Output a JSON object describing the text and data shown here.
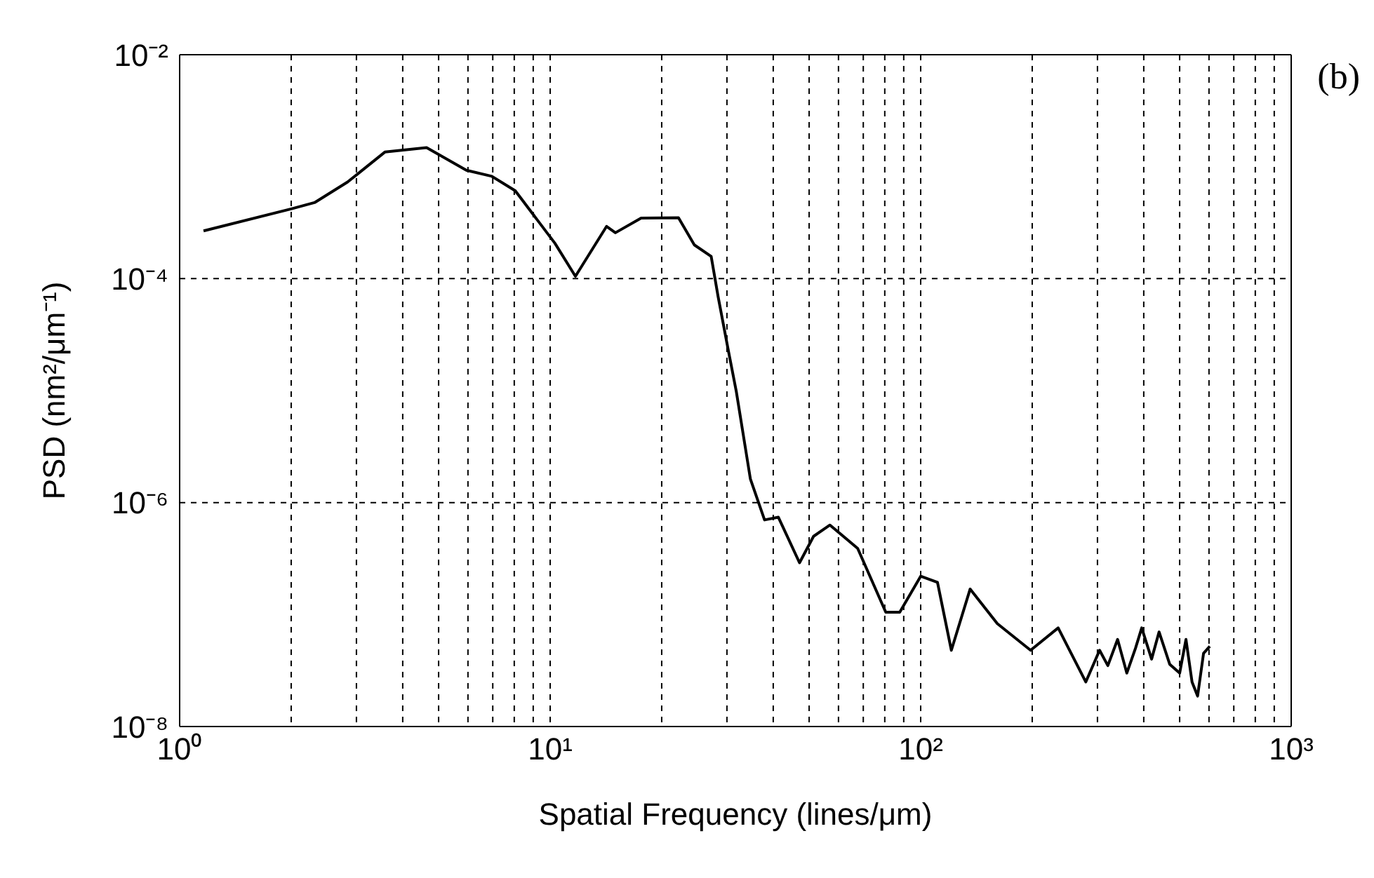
{
  "chart_data": {
    "type": "line",
    "xlabel": "Spatial Frequency (lines/μm)",
    "ylabel": "PSD (nm²/μm⁻¹)",
    "annotations": [
      "(b)"
    ],
    "log": "xy",
    "grid": true,
    "marker": "none",
    "line_style": "solid",
    "xlim": [
      1,
      1000
    ],
    "ylim": [
      1e-08,
      0.01
    ],
    "xticks": [
      {
        "value": 1,
        "label": "10⁰"
      },
      {
        "value": 2,
        "label": null
      },
      {
        "value": 3,
        "label": null
      },
      {
        "value": 4,
        "label": null
      },
      {
        "value": 5,
        "label": null
      },
      {
        "value": 6,
        "label": null
      },
      {
        "value": 7,
        "label": null
      },
      {
        "value": 8,
        "label": null
      },
      {
        "value": 9,
        "label": null
      },
      {
        "value": 10,
        "label": "10¹"
      },
      {
        "value": 20,
        "label": null
      },
      {
        "value": 30,
        "label": null
      },
      {
        "value": 40,
        "label": null
      },
      {
        "value": 50,
        "label": null
      },
      {
        "value": 60,
        "label": null
      },
      {
        "value": 70,
        "label": null
      },
      {
        "value": 80,
        "label": null
      },
      {
        "value": 90,
        "label": null
      },
      {
        "value": 100,
        "label": "10²"
      },
      {
        "value": 200,
        "label": null
      },
      {
        "value": 300,
        "label": null
      },
      {
        "value": 400,
        "label": null
      },
      {
        "value": 500,
        "label": null
      },
      {
        "value": 600,
        "label": null
      },
      {
        "value": 700,
        "label": null
      },
      {
        "value": 800,
        "label": null
      },
      {
        "value": 900,
        "label": null
      },
      {
        "value": 1000,
        "label": "10³"
      }
    ],
    "yticks": [
      {
        "value": 1e-08,
        "label": "10⁻⁸"
      },
      {
        "value": 1e-06,
        "label": "10⁻⁶"
      },
      {
        "value": 0.0001,
        "label": "10⁻⁴"
      },
      {
        "value": 0.01,
        "label": "10⁻²"
      }
    ],
    "series": [
      {
        "color": "#000000",
        "x": [
          1.16,
          2.0,
          2.32,
          2.84,
          3.58,
          4.64,
          5.94,
          6.96,
          8.05,
          10.3,
          11.7,
          14.2,
          15.0,
          17.6,
          22.2,
          24.5,
          27.2,
          28.4,
          30.1,
          31.8,
          34.7,
          37.9,
          41.3,
          47.1,
          51.4,
          56.9,
          67.6,
          80.5,
          87.8,
          100,
          111,
          121,
          136,
          161,
          198,
          235,
          279,
          304,
          320,
          340,
          360,
          380,
          395,
          420,
          440,
          470,
          500,
          520,
          540,
          559,
          580,
          603
        ],
        "values": [
          0.000267,
          0.00042,
          0.00048,
          0.00073,
          0.00135,
          0.00148,
          0.00093,
          0.00082,
          0.00061,
          0.000207,
          0.000105,
          0.000293,
          0.000257,
          0.000347,
          0.00035,
          0.0002,
          0.000158,
          6.9e-05,
          2.5e-05,
          9.8e-06,
          1.63e-06,
          7e-07,
          7.4e-07,
          2.9e-07,
          5e-07,
          6.3e-07,
          3.9e-07,
          1.05e-07,
          1.05e-07,
          2.2e-07,
          1.94e-07,
          4.8e-08,
          1.69e-07,
          8.3e-08,
          4.8e-08,
          7.6e-08,
          2.5e-08,
          4.8e-08,
          3.5e-08,
          6e-08,
          3e-08,
          5e-08,
          7.6e-08,
          4e-08,
          7e-08,
          3.6e-08,
          3e-08,
          6e-08,
          2.5e-08,
          1.87e-08,
          4.5e-08,
          5.2e-08
        ]
      }
    ]
  }
}
